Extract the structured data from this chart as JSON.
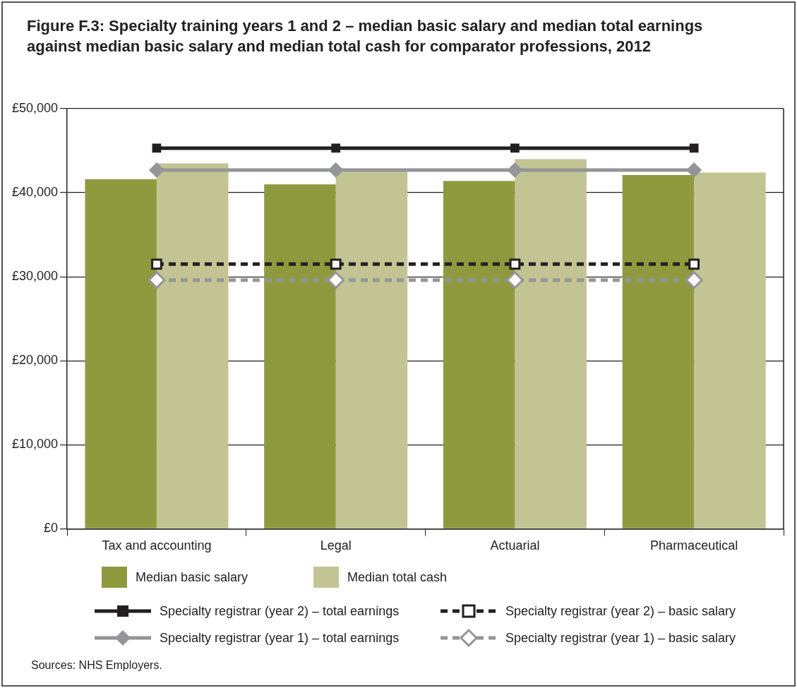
{
  "chart_data": {
    "type": "bar",
    "title": "Figure F.3: Specialty training years 1 and 2 – median basic salary and median total earnings against median basic salary and median total cash for comparator professions, 2012",
    "categories": [
      "Tax and accounting",
      "Legal",
      "Actuarial",
      "Pharmaceutical"
    ],
    "ylim": [
      0,
      50000
    ],
    "yticks": [
      {
        "value": 0,
        "label": "£0"
      },
      {
        "value": 10000,
        "label": "£10,000"
      },
      {
        "value": 20000,
        "label": "£20,000"
      },
      {
        "value": 30000,
        "label": "£30,000"
      },
      {
        "value": 40000,
        "label": "£40,000"
      },
      {
        "value": 50000,
        "label": "£50,000"
      }
    ],
    "grid": "y",
    "legend": "bottom",
    "series": [
      {
        "name": "Median basic salary",
        "color": "#8f9a3e",
        "values": [
          41600,
          41000,
          41400,
          42100
        ]
      },
      {
        "name": "Median total cash",
        "color": "#c3c493",
        "values": [
          43500,
          42500,
          44000,
          42400
        ]
      },
      {
        "name": "Specialty registrar (year 2) – total earnings",
        "type": "line",
        "color": "#231f20",
        "marker": "square",
        "line_style": "solid",
        "values": [
          45300,
          45300,
          45300,
          45300
        ]
      },
      {
        "name": "Specialty registrar (year 2) – basic salary",
        "type": "line",
        "color": "#231f20",
        "marker": "square",
        "line_style": "dashed",
        "values": [
          31500,
          31500,
          31500,
          31500
        ]
      },
      {
        "name": "Specialty registrar (year 1) – total earnings",
        "type": "line",
        "color": "#939598",
        "marker": "diamond",
        "line_style": "solid",
        "values": [
          42700,
          42700,
          42700,
          42700
        ]
      },
      {
        "name": "Specialty registrar (year 1) – basic salary",
        "type": "line",
        "color": "#939598",
        "marker": "diamond",
        "line_style": "dashed",
        "values": [
          29600,
          29600,
          29600,
          29600
        ]
      }
    ],
    "annotations": [
      "Sources: NHS Employers."
    ]
  }
}
